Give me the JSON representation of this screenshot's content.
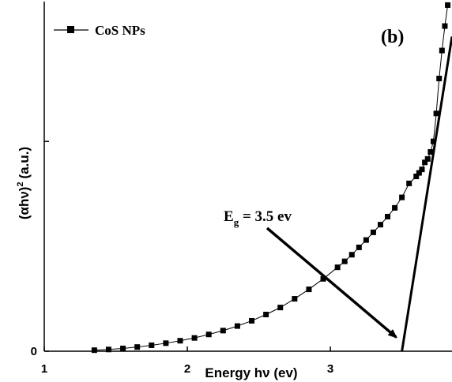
{
  "chart_data": {
    "type": "scatter",
    "panel_label": "(b)",
    "xlabel": "Energy hν (ev)",
    "ylabel_main": "(αhν)",
    "ylabel_sup": "2",
    "ylabel_unit": "(a.u.)",
    "xlim": [
      1,
      3.85
    ],
    "ylim": [
      0,
      1.0
    ],
    "x_ticks": [
      {
        "value": 1,
        "label": "1"
      },
      {
        "value": 2,
        "label": "2"
      },
      {
        "value": 3,
        "label": "3"
      }
    ],
    "y_ticks": [
      {
        "value": 0,
        "label": "0"
      },
      {
        "value": 0.6,
        "label": ""
      }
    ],
    "series": [
      {
        "name": "CoS NPs",
        "marker": "square",
        "color": "#000000",
        "x": [
          1.35,
          1.45,
          1.55,
          1.65,
          1.75,
          1.85,
          1.95,
          2.05,
          2.15,
          2.25,
          2.35,
          2.45,
          2.55,
          2.65,
          2.75,
          2.85,
          2.95,
          3.05,
          3.1,
          3.15,
          3.2,
          3.25,
          3.3,
          3.35,
          3.4,
          3.45,
          3.5,
          3.55,
          3.6,
          3.62,
          3.64,
          3.66,
          3.68,
          3.7,
          3.72,
          3.74,
          3.76,
          3.78,
          3.8,
          3.82
        ],
        "y": [
          0.003,
          0.005,
          0.008,
          0.012,
          0.017,
          0.023,
          0.03,
          0.038,
          0.048,
          0.059,
          0.072,
          0.087,
          0.105,
          0.125,
          0.15,
          0.177,
          0.207,
          0.24,
          0.257,
          0.276,
          0.297,
          0.318,
          0.34,
          0.362,
          0.385,
          0.41,
          0.44,
          0.48,
          0.5,
          0.51,
          0.52,
          0.54,
          0.55,
          0.57,
          0.6,
          0.68,
          0.78,
          0.86,
          0.93,
          0.99
        ]
      }
    ],
    "tangent_line": {
      "x": [
        3.5,
        3.85
      ],
      "y": [
        0.0,
        0.9
      ]
    },
    "annotation": {
      "text_main": "E",
      "text_sub": "g",
      "text_rest": " = 3.5 ev",
      "arrow_to": {
        "x": 3.46,
        "y": 0.04
      }
    },
    "legend_position": "top-left",
    "grid": false
  }
}
